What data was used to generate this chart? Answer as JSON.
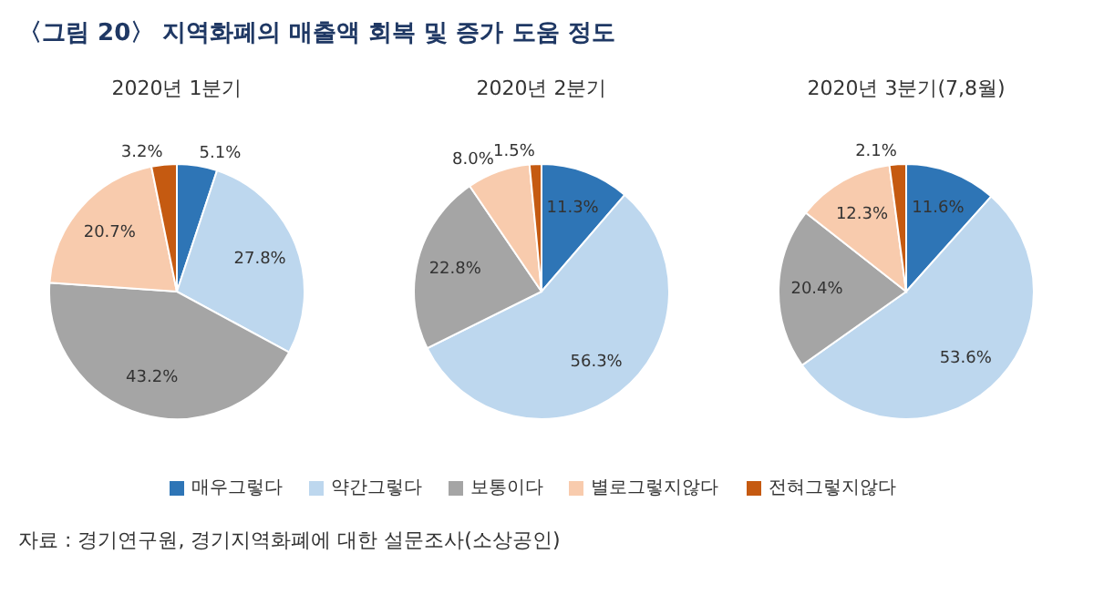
{
  "chart_data": [
    {
      "type": "pie",
      "title": "2020년 1분기",
      "legend": "bottom",
      "annotations": [
        "〈그림 20〉 지역화폐의 매출액 회복 및 증가 도움 정도",
        "자료 : 경기연구원, 경기지역화폐에 대한 설문조사(소상공인)"
      ],
      "categories": [
        "매우그렇다",
        "약간그렇다",
        "보통이다",
        "별로그렇지않다",
        "전혀그렇지않다"
      ],
      "values": [
        5.1,
        27.8,
        43.2,
        20.7,
        3.2
      ],
      "value_labels": [
        "5.1%",
        "27.8%",
        "43.2%",
        "20.7%",
        "3.2%"
      ],
      "colors": [
        "#2e75b6",
        "#bdd7ee",
        "#a5a5a5",
        "#f8cbad",
        "#c55a11"
      ]
    },
    {
      "type": "pie",
      "title": "2020년 2분기",
      "categories": [
        null,
        null,
        null,
        null,
        null
      ],
      "values": [
        11.3,
        56.3,
        22.8,
        8.0,
        1.5
      ],
      "value_labels": [
        "11.3%",
        "56.3%",
        "22.8%",
        "8.0%",
        "1.5%"
      ],
      "colors": [
        "#2e75b6",
        "#bdd7ee",
        "#a5a5a5",
        "#f8cbad",
        "#c55a11"
      ]
    },
    {
      "type": "pie",
      "title": "2020년 3분기(7,8월)",
      "categories": [
        null,
        null,
        null,
        null,
        null
      ],
      "values": [
        11.6,
        53.6,
        20.4,
        12.3,
        2.1
      ],
      "value_labels": [
        "11.6%",
        "53.6%",
        "20.4%",
        "12.3%",
        "2.1%"
      ],
      "colors": [
        "#2e75b6",
        "#bdd7ee",
        "#a5a5a5",
        "#f8cbad",
        "#c55a11"
      ]
    }
  ]
}
